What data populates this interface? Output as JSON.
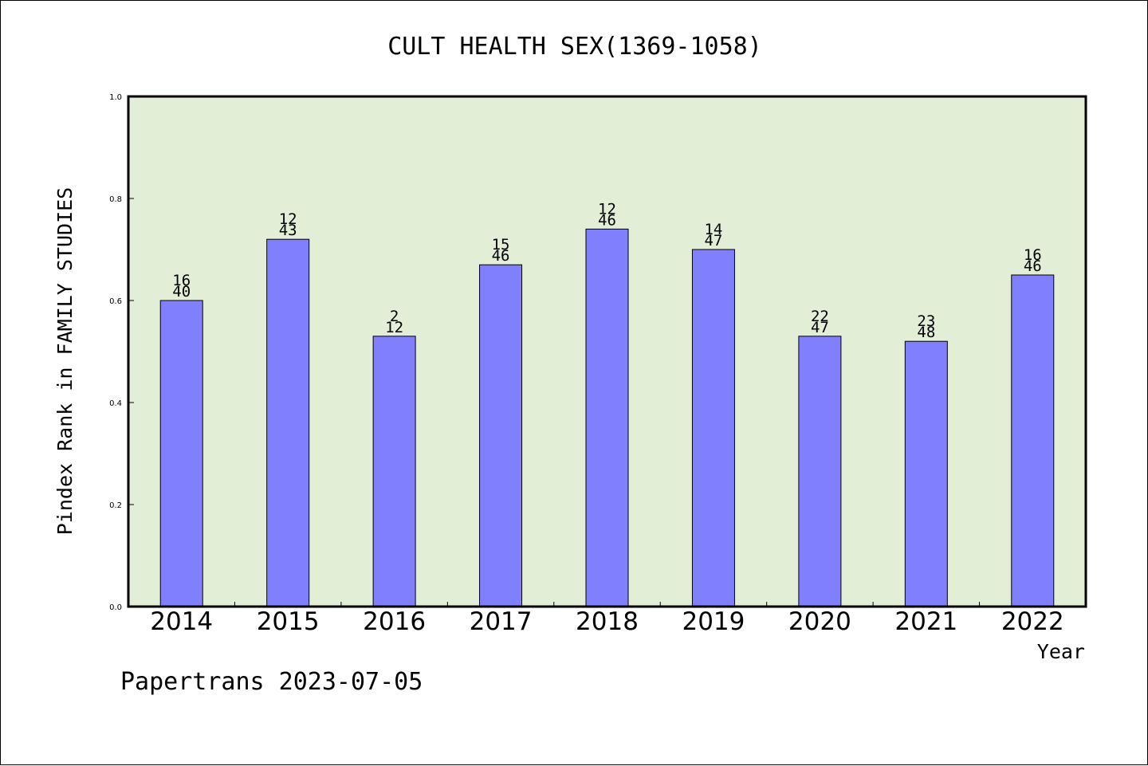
{
  "chart_data": {
    "type": "bar",
    "title": "CULT HEALTH SEX(1369-1058)",
    "xlabel": "Year",
    "ylabel": "Pindex Rank in FAMILY STUDIES",
    "ylim": [
      0,
      1
    ],
    "yticks": [
      "0.0",
      "0.2",
      "0.4",
      "0.6",
      "0.8",
      "1.0"
    ],
    "categories": [
      "2014",
      "2015",
      "2016",
      "2017",
      "2018",
      "2019",
      "2020",
      "2021",
      "2022"
    ],
    "values": [
      0.6,
      0.72,
      0.53,
      0.67,
      0.74,
      0.7,
      0.53,
      0.52,
      0.65
    ],
    "labels_top": [
      "16",
      "12",
      "2",
      "15",
      "12",
      "14",
      "22",
      "23",
      "16"
    ],
    "labels_bottom": [
      "40",
      "43",
      "12",
      "46",
      "46",
      "47",
      "47",
      "48",
      "46"
    ],
    "footer": "Papertrans 2023-07-05",
    "grid": false,
    "legend": "none",
    "colors": {
      "plot_background": "#e2efd6",
      "bar_fill": "#8080ff",
      "bar_stroke": "#000000"
    }
  }
}
